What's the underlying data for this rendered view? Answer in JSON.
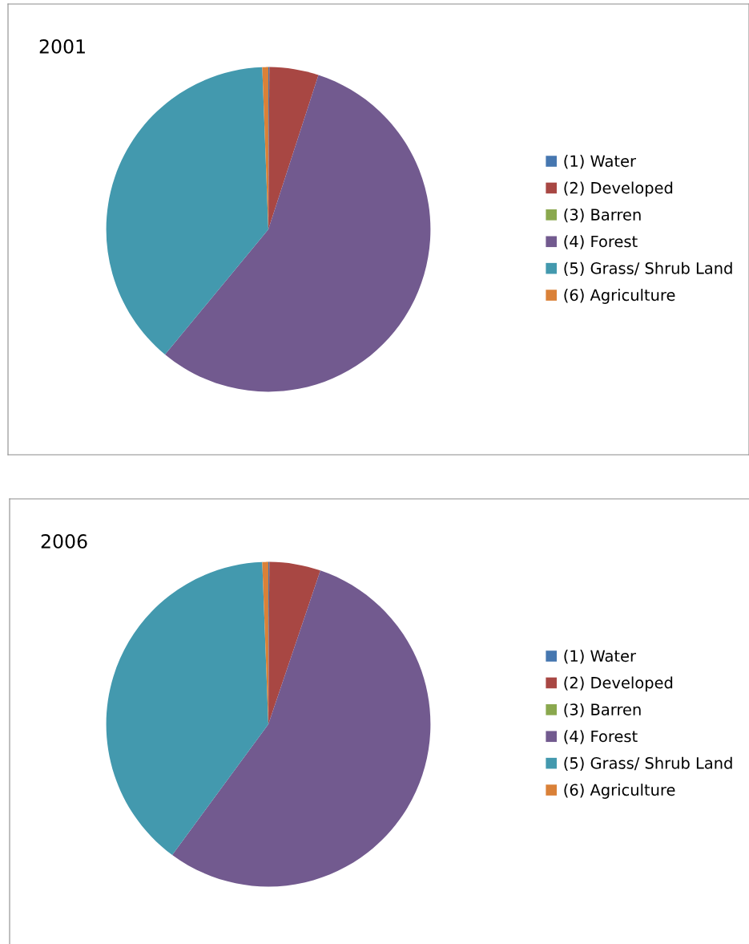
{
  "chart_data": [
    {
      "type": "pie",
      "title": "2001",
      "categories": [
        "(1) Water",
        "(2) Developed",
        "(3) Barren",
        "(4) Forest",
        "(5) Grass/ Shrub Land",
        "(6) Agriculture"
      ],
      "values": [
        0.1,
        4.9,
        0.0,
        56.0,
        38.4,
        0.6
      ],
      "colors": [
        "#4677b0",
        "#a84743",
        "#8aa84e",
        "#725a8f",
        "#4399ae",
        "#da8138"
      ],
      "legend": "right"
    },
    {
      "type": "pie",
      "title": "2006",
      "categories": [
        "(1) Water",
        "(2) Developed",
        "(3) Barren",
        "(4) Forest",
        "(5) Grass/ Shrub Land",
        "(6) Agriculture"
      ],
      "values": [
        0.1,
        5.1,
        0.0,
        54.9,
        39.3,
        0.6
      ],
      "colors": [
        "#4677b0",
        "#a84743",
        "#8aa84e",
        "#725a8f",
        "#4399ae",
        "#da8138"
      ],
      "legend": "right"
    }
  ]
}
